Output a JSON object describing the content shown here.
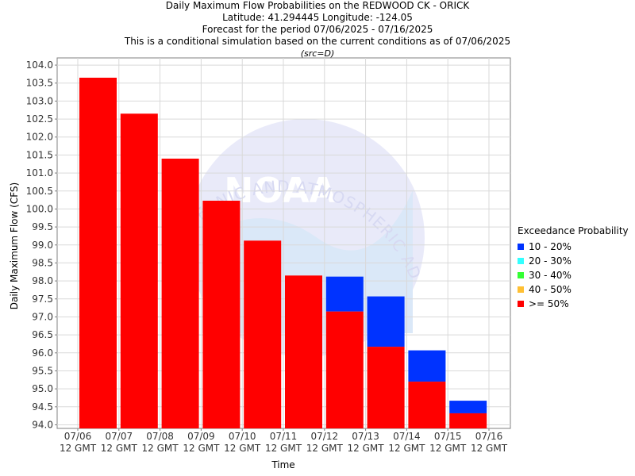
{
  "titles": {
    "line1": "Daily Maximum Flow Probabilities on the REDWOOD CK - ORICK",
    "line2": "Latitude: 41.294445 Longitude: -124.05",
    "line3": "Forecast for the period 07/06/2025 - 07/16/2025",
    "line4": "This is a conditional simulation based on the current conditions as of 07/06/2025",
    "line5": "(src=D)"
  },
  "watermark": {
    "text": "NOAA",
    "arc_text": "OCEANIC AND ATMOSPHERIC ADMINISTRATION"
  },
  "chart_data": {
    "type": "bar",
    "stacked": true,
    "xlabel": "Time",
    "ylabel": "Daily Maximum Flow (CFS)",
    "ylim": [
      93.9,
      104.2
    ],
    "yticks": [
      "94.0",
      "94.5",
      "95.0",
      "95.5",
      "96.0",
      "96.5",
      "97.0",
      "97.5",
      "98.0",
      "98.5",
      "99.0",
      "99.5",
      "100.0",
      "100.5",
      "101.0",
      "101.5",
      "102.0",
      "102.5",
      "103.0",
      "103.5",
      "104.0"
    ],
    "xticks": [
      {
        "date": "07/06",
        "time": "12 GMT"
      },
      {
        "date": "07/07",
        "time": "12 GMT"
      },
      {
        "date": "07/08",
        "time": "12 GMT"
      },
      {
        "date": "07/09",
        "time": "12 GMT"
      },
      {
        "date": "07/10",
        "time": "12 GMT"
      },
      {
        "date": "07/11",
        "time": "12 GMT"
      },
      {
        "date": "07/12",
        "time": "12 GMT"
      },
      {
        "date": "07/13",
        "time": "12 GMT"
      },
      {
        "date": "07/14",
        "time": "12 GMT"
      },
      {
        "date": "07/15",
        "time": "12 GMT"
      },
      {
        "date": "07/16",
        "time": "12 GMT"
      }
    ],
    "bars": [
      {
        "date": "07/06",
        "ge50": 103.65,
        "p10_20": 103.65
      },
      {
        "date": "07/07",
        "ge50": 102.65,
        "p10_20": 102.65
      },
      {
        "date": "07/08",
        "ge50": 101.4,
        "p10_20": 101.4
      },
      {
        "date": "07/09",
        "ge50": 100.23,
        "p10_20": 100.23
      },
      {
        "date": "07/10",
        "ge50": 99.12,
        "p10_20": 99.12
      },
      {
        "date": "07/11",
        "ge50": 98.15,
        "p10_20": 98.15
      },
      {
        "date": "07/12",
        "ge50": 97.15,
        "p10_20": 98.12
      },
      {
        "date": "07/13",
        "ge50": 96.17,
        "p10_20": 97.57
      },
      {
        "date": "07/14",
        "ge50": 95.2,
        "p10_20": 96.07
      },
      {
        "date": "07/15",
        "ge50": 94.32,
        "p10_20": 94.67
      }
    ],
    "legend_title": "Exceedance Probability",
    "legend_placement": "right",
    "legend": [
      {
        "label": "10 - 20%",
        "color": "#0033ff"
      },
      {
        "label": "20 - 30%",
        "color": "#33ffff"
      },
      {
        "label": "30 - 40%",
        "color": "#33ff33"
      },
      {
        "label": "40 - 50%",
        "color": "#ffc033"
      },
      {
        "label": ">= 50%",
        "color": "#ff0000"
      }
    ],
    "grid": true
  }
}
